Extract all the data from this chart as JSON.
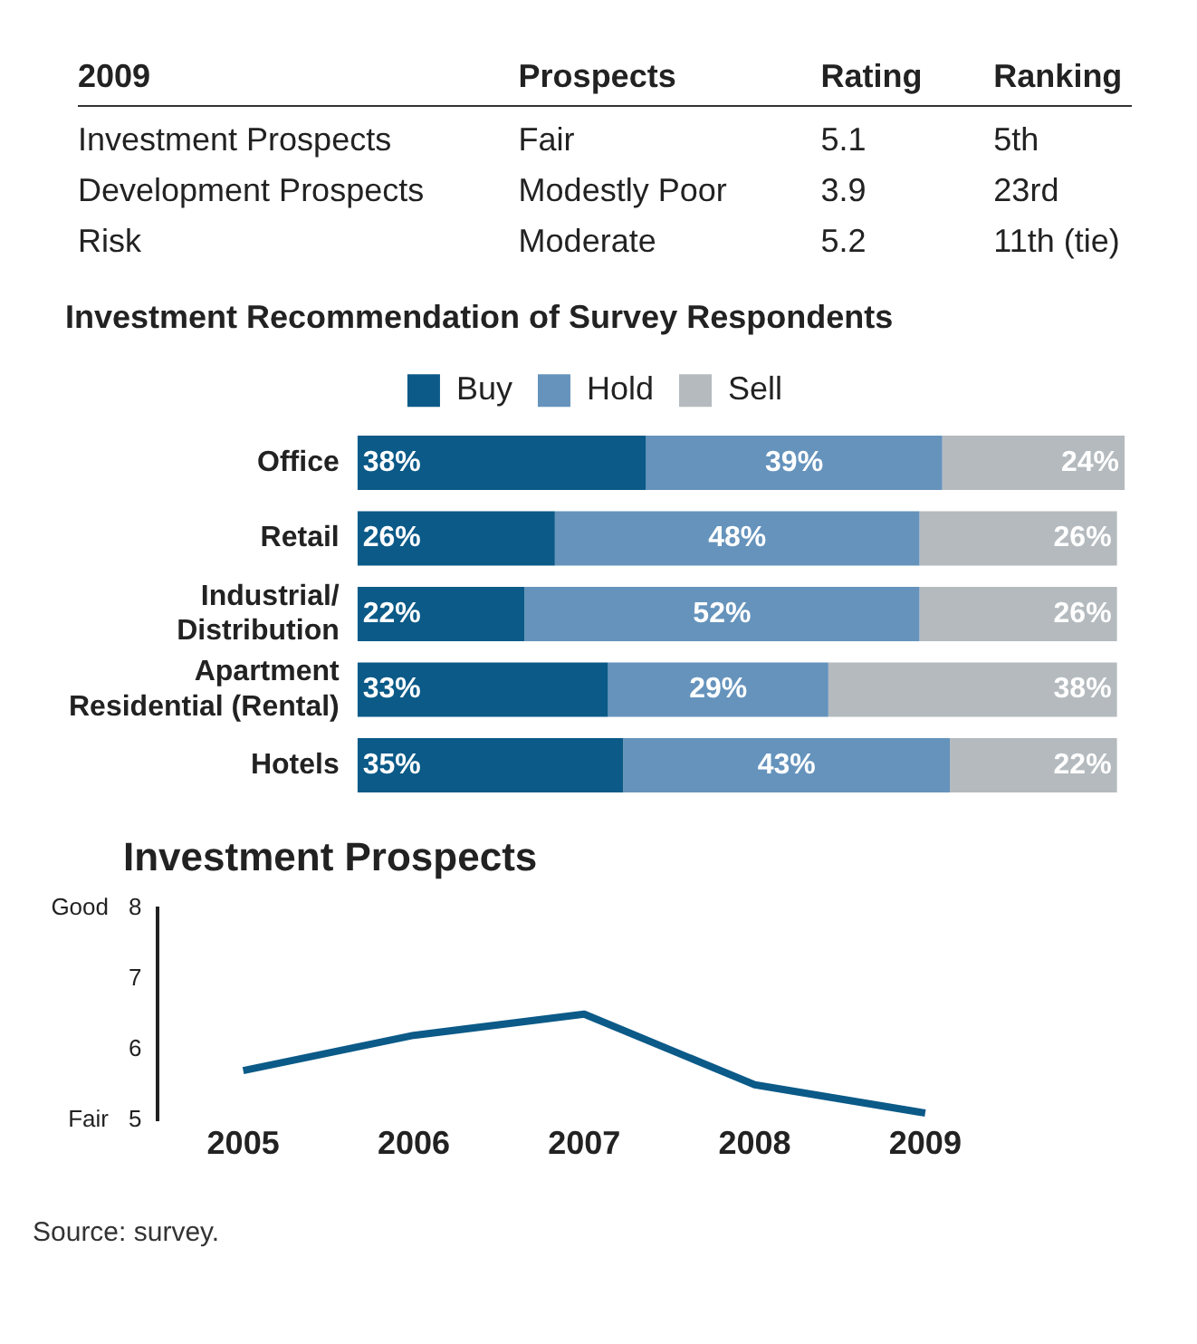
{
  "chart_data": [
    {
      "type": "other",
      "annotations": [
        "2009",
        "Prospects",
        "Rating",
        "Ranking",
        "Investment Prospects",
        "Fair",
        "5.1",
        "5th",
        "Development Prospects",
        "Modestly Poor",
        "3.9",
        "23rd",
        "Risk",
        "Moderate",
        "5.2",
        "11th (tie)"
      ]
    },
    {
      "type": "bar",
      "title": "Investment Recommendation of Survey Respondents",
      "orientation": "horizontal",
      "stacked": true,
      "legend": "top",
      "categories": [
        "Office",
        "Retail",
        "Industrial/\nDistribution",
        "Apartment\nResidential (Rental)",
        "Hotels"
      ],
      "series": [
        {
          "name": "Buy",
          "color": "#0b5a88",
          "values": [
            38,
            26,
            22,
            33,
            35
          ],
          "value_labels": [
            "38%",
            "26%",
            "22%",
            "33%",
            "35%"
          ]
        },
        {
          "name": "Hold",
          "color": "#6593bc",
          "values": [
            39,
            48,
            52,
            29,
            43
          ],
          "value_labels": [
            "39%",
            "48%",
            "52%",
            "29%",
            "43%"
          ]
        },
        {
          "name": "Sell",
          "color": "#b4babe",
          "values": [
            24,
            26,
            26,
            38,
            22
          ],
          "value_labels": [
            "24%",
            "26%",
            "26%",
            "38%",
            "22%"
          ]
        }
      ]
    },
    {
      "type": "line",
      "title": "Investment Prospects",
      "categories": [
        "2005",
        "2006",
        "2007",
        "2008",
        "2009"
      ],
      "series": [
        {
          "color": "#0b5a88",
          "values": [
            5.7,
            6.2,
            6.5,
            5.5,
            5.1
          ]
        }
      ],
      "ylim": [
        5,
        8
      ],
      "yticks": [
        5,
        6,
        7,
        8
      ],
      "grid": false,
      "marker": "none",
      "line_style": "solid",
      "annotations": [
        "Fair",
        "Good",
        "Source: survey."
      ]
    }
  ]
}
